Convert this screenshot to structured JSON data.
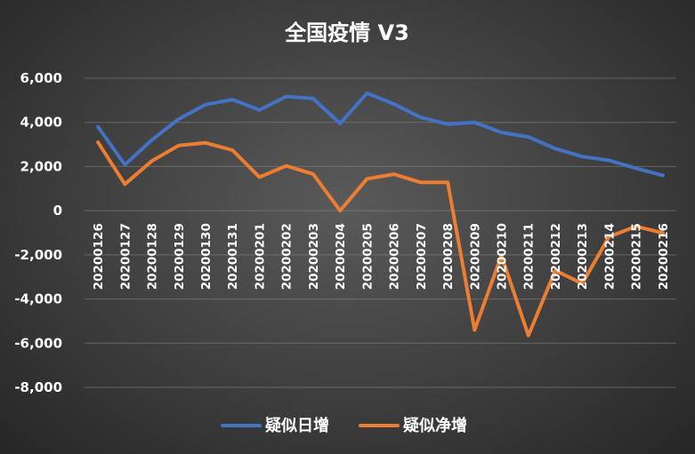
{
  "chart_data": {
    "type": "line",
    "title": "全国疫情 V3",
    "xlabel": "",
    "ylabel": "",
    "categories": [
      "20200126",
      "20200127",
      "20200128",
      "20200129",
      "20200130",
      "20200131",
      "20200201",
      "20200202",
      "20200203",
      "20200204",
      "20200205",
      "20200206",
      "20200207",
      "20200208",
      "20200209",
      "20200210",
      "20200211",
      "20200212",
      "20200213",
      "20200214",
      "20200215",
      "20200216"
    ],
    "ylim": [
      -8000,
      6000
    ],
    "yticks": [
      6000,
      4000,
      2000,
      0,
      -2000,
      -4000,
      -6000,
      -8000
    ],
    "ytick_labels": [
      "6,000",
      "4,000",
      "2,000",
      "0",
      "-2,000",
      "-4,000",
      "-6,000",
      "-8,000"
    ],
    "grid": true,
    "legend_position": "bottom",
    "series": [
      {
        "name": "疑似日增",
        "color": "#4472c4",
        "values": [
          3800,
          2080,
          3200,
          4150,
          4800,
          5030,
          4560,
          5170,
          5080,
          3950,
          5320,
          4830,
          4220,
          3920,
          4000,
          3540,
          3340,
          2810,
          2450,
          2280,
          1920,
          1600
        ]
      },
      {
        "name": "疑似净增",
        "color": "#ed7d31",
        "values": [
          3100,
          1200,
          2250,
          2950,
          3070,
          2740,
          1520,
          2030,
          1660,
          0,
          1440,
          1650,
          1280,
          1280,
          -5400,
          -2030,
          -5650,
          -2700,
          -3300,
          -1180,
          -710,
          -1010
        ]
      }
    ]
  }
}
